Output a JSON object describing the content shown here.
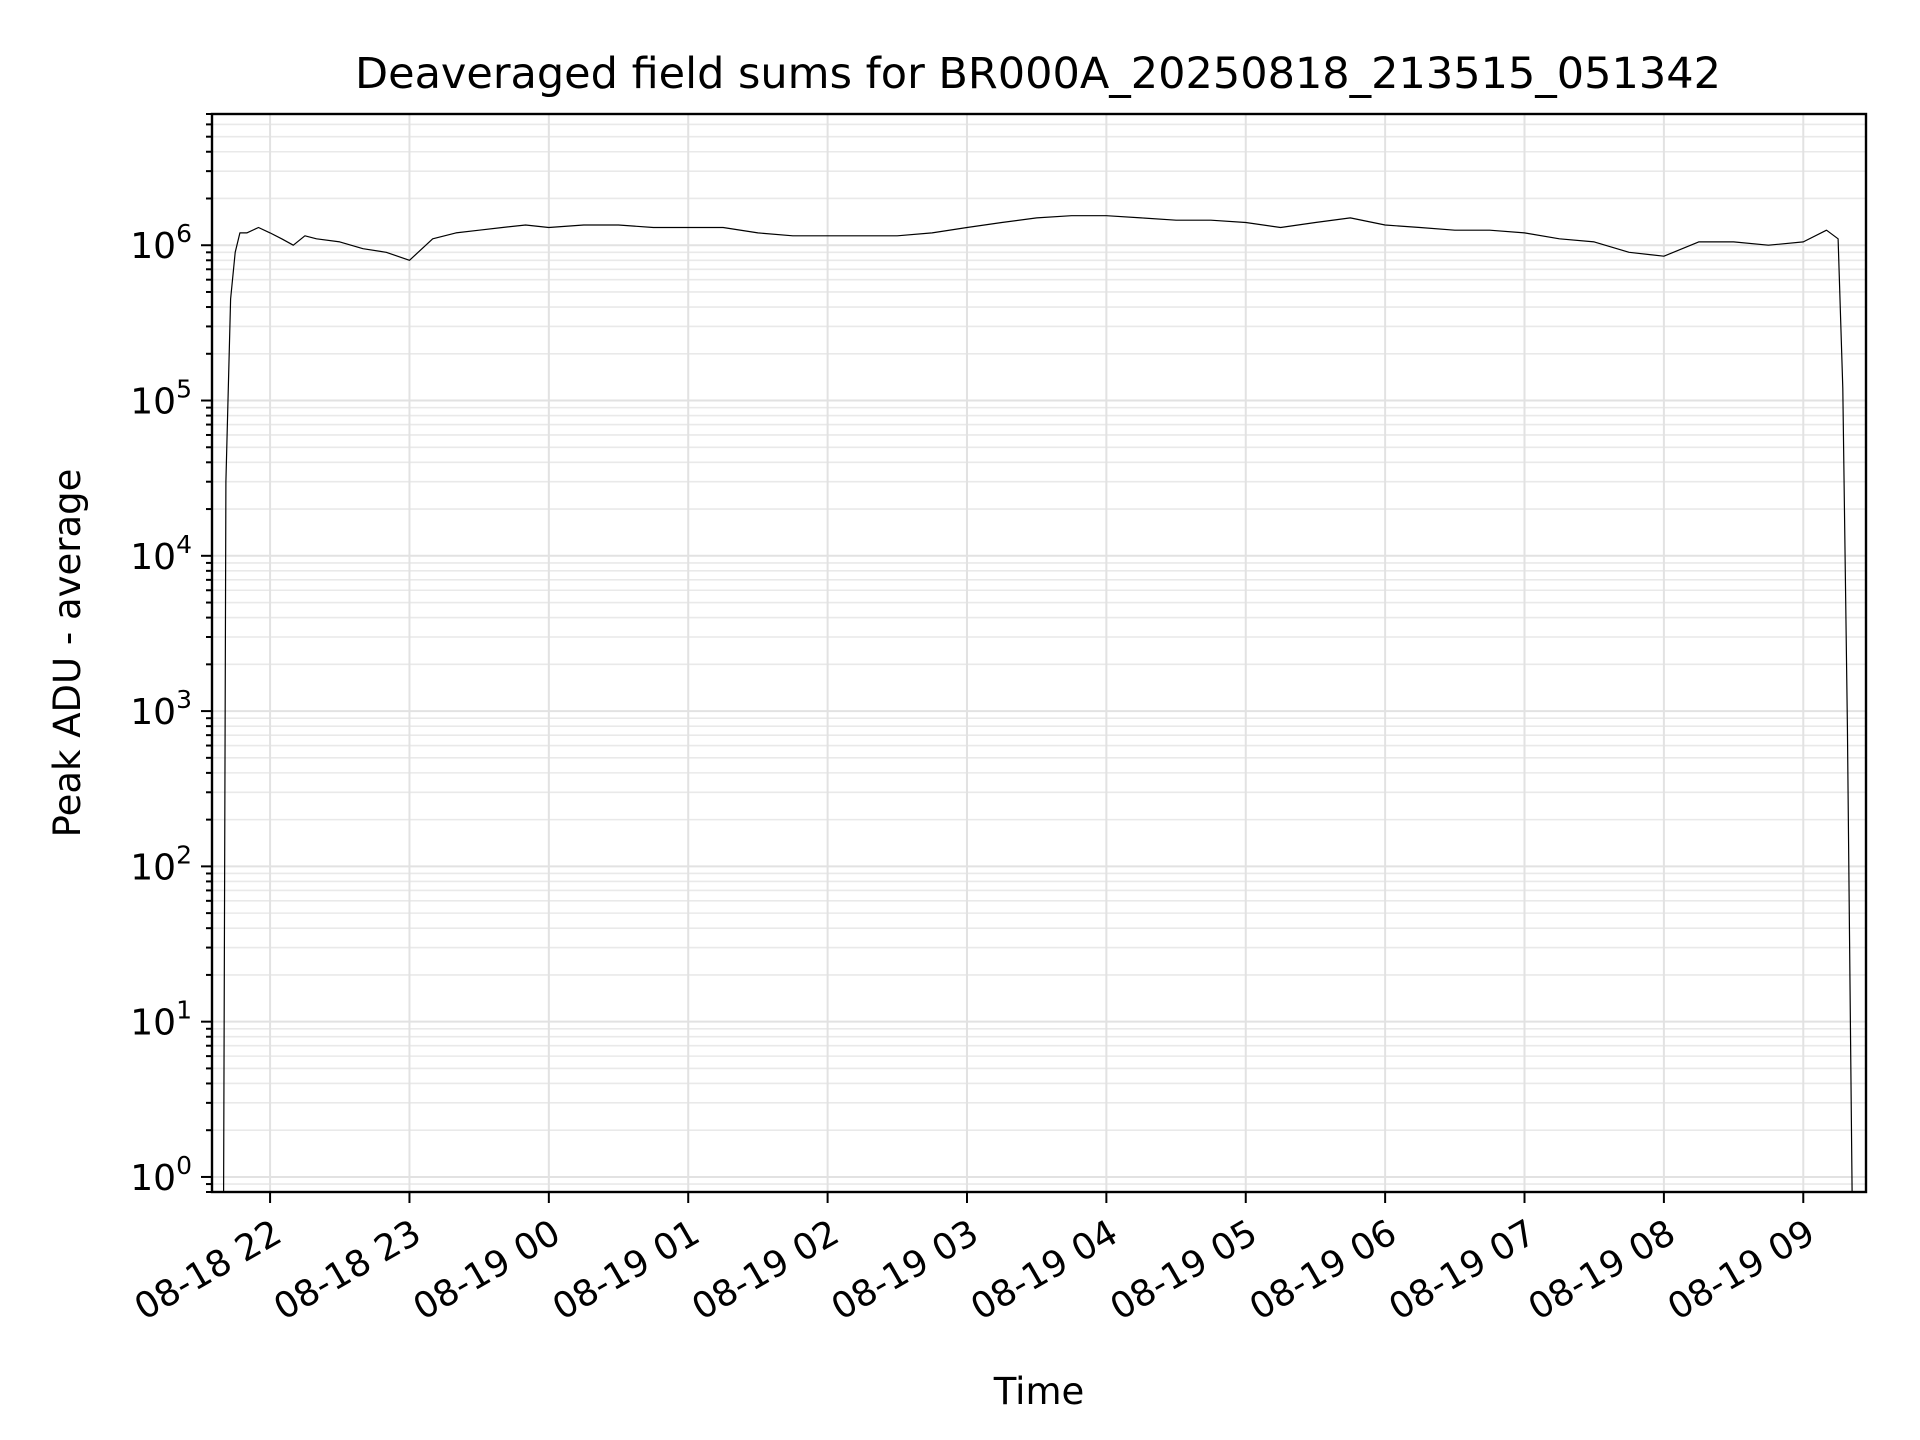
{
  "chart_data": {
    "type": "line",
    "title": "Deaveraged field sums for BR000A_20250818_213515_051342",
    "xlabel": "Time",
    "ylabel": "Peak ADU - average",
    "y_scale": "log",
    "ylim": [
      0.8,
      7000000
    ],
    "xlim": [
      "2025-08-18T21:35",
      "2025-08-19T09:27"
    ],
    "grid": true,
    "x_ticks": [
      {
        "t": "2025-08-18T22:00",
        "label": "08-18 22"
      },
      {
        "t": "2025-08-18T23:00",
        "label": "08-18 23"
      },
      {
        "t": "2025-08-19T00:00",
        "label": "08-19 00"
      },
      {
        "t": "2025-08-19T01:00",
        "label": "08-19 01"
      },
      {
        "t": "2025-08-19T02:00",
        "label": "08-19 02"
      },
      {
        "t": "2025-08-19T03:00",
        "label": "08-19 03"
      },
      {
        "t": "2025-08-19T04:00",
        "label": "08-19 04"
      },
      {
        "t": "2025-08-19T05:00",
        "label": "08-19 05"
      },
      {
        "t": "2025-08-19T06:00",
        "label": "08-19 06"
      },
      {
        "t": "2025-08-19T07:00",
        "label": "08-19 07"
      },
      {
        "t": "2025-08-19T08:00",
        "label": "08-19 08"
      },
      {
        "t": "2025-08-19T09:00",
        "label": "08-19 09"
      }
    ],
    "y_ticks": [
      {
        "value": 1,
        "base": "10",
        "exp": "0"
      },
      {
        "value": 10,
        "base": "10",
        "exp": "1"
      },
      {
        "value": 100,
        "base": "10",
        "exp": "2"
      },
      {
        "value": 1000,
        "base": "10",
        "exp": "3"
      },
      {
        "value": 10000,
        "base": "10",
        "exp": "4"
      },
      {
        "value": 100000,
        "base": "10",
        "exp": "5"
      },
      {
        "value": 1000000,
        "base": "10",
        "exp": "6"
      }
    ],
    "series": [
      {
        "x": [
          "2025-08-18T21:40",
          "2025-08-18T21:41",
          "2025-08-18T21:43",
          "2025-08-18T21:45",
          "2025-08-18T21:47",
          "2025-08-18T21:50",
          "2025-08-18T21:55",
          "2025-08-18T22:00",
          "2025-08-18T22:05",
          "2025-08-18T22:10",
          "2025-08-18T22:15",
          "2025-08-18T22:20",
          "2025-08-18T22:30",
          "2025-08-18T22:40",
          "2025-08-18T22:50",
          "2025-08-18T23:00",
          "2025-08-18T23:10",
          "2025-08-18T23:20",
          "2025-08-18T23:30",
          "2025-08-18T23:40",
          "2025-08-18T23:50",
          "2025-08-19T00:00",
          "2025-08-19T00:15",
          "2025-08-19T00:30",
          "2025-08-19T00:45",
          "2025-08-19T01:00",
          "2025-08-19T01:15",
          "2025-08-19T01:30",
          "2025-08-19T01:45",
          "2025-08-19T02:00",
          "2025-08-19T02:15",
          "2025-08-19T02:30",
          "2025-08-19T02:45",
          "2025-08-19T03:00",
          "2025-08-19T03:15",
          "2025-08-19T03:30",
          "2025-08-19T03:45",
          "2025-08-19T04:00",
          "2025-08-19T04:15",
          "2025-08-19T04:30",
          "2025-08-19T04:45",
          "2025-08-19T05:00",
          "2025-08-19T05:15",
          "2025-08-19T05:30",
          "2025-08-19T05:45",
          "2025-08-19T06:00",
          "2025-08-19T06:15",
          "2025-08-19T06:30",
          "2025-08-19T06:45",
          "2025-08-19T07:00",
          "2025-08-19T07:15",
          "2025-08-19T07:30",
          "2025-08-19T07:45",
          "2025-08-19T08:00",
          "2025-08-19T08:15",
          "2025-08-19T08:30",
          "2025-08-19T08:45",
          "2025-08-19T09:00",
          "2025-08-19T09:10",
          "2025-08-19T09:15",
          "2025-08-19T09:17",
          "2025-08-19T09:19",
          "2025-08-19T09:21"
        ],
        "y": [
          0.8,
          30000,
          450000,
          900000,
          1200000,
          1200000,
          1300000,
          1200000,
          1100000,
          1000000,
          1150000,
          1100000,
          1050000,
          950000,
          900000,
          800000,
          1100000,
          1200000,
          1250000,
          1300000,
          1350000,
          1300000,
          1350000,
          1350000,
          1300000,
          1300000,
          1300000,
          1200000,
          1150000,
          1150000,
          1150000,
          1150000,
          1200000,
          1300000,
          1400000,
          1500000,
          1550000,
          1550000,
          1500000,
          1450000,
          1450000,
          1400000,
          1300000,
          1400000,
          1500000,
          1350000,
          1300000,
          1250000,
          1250000,
          1200000,
          1100000,
          1050000,
          900000,
          850000,
          1050000,
          1050000,
          1000000,
          1050000,
          1250000,
          1100000,
          120000,
          800,
          0.8
        ]
      }
    ]
  }
}
